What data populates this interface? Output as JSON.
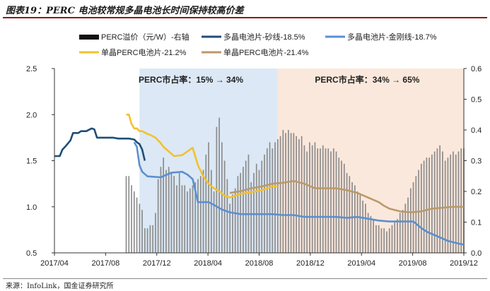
{
  "title": "图表19：PERC 电池较常规多晶电池长时间保持较高价差",
  "source": "来源：InfoLink，国金证券研究所",
  "chart_data": {
    "type": "line",
    "x_ticks": [
      "2017/04",
      "2017/08",
      "2017/12",
      "2018/04",
      "2018/08",
      "2018/12",
      "2019/04",
      "2019/08",
      "2019/12"
    ],
    "x_range": [
      "2017/04",
      "2019/12"
    ],
    "y_left": {
      "range": [
        0.5,
        2.5
      ],
      "ticks": [
        "0.5",
        "1.0",
        "1.5",
        "2.0",
        "2.5"
      ]
    },
    "y_right": {
      "range": [
        0.0,
        0.6
      ],
      "ticks": [
        "0.0",
        "0.1",
        "0.2",
        "0.3",
        "0.4",
        "0.5",
        "0.6"
      ]
    },
    "legend": [
      {
        "name": "PERC溢价（元/W）-右轴",
        "color": "#111111",
        "kind": "bar"
      },
      {
        "name": "多晶电池片-砂线-18.5%",
        "color": "#1f4e79",
        "kind": "line"
      },
      {
        "name": "多晶电池片-金刚线-18.7%",
        "color": "#5b8fd0",
        "kind": "line"
      },
      {
        "name": "单晶PERC电池片-21.2%",
        "color": "#f2c12e",
        "kind": "line"
      },
      {
        "name": "单晶PERC电池片-21.4%",
        "color": "#b99a6a",
        "kind": "line"
      }
    ],
    "annotations": [
      {
        "text": "PERC市占率：15% → 34%",
        "range": [
          "2017/12",
          "2018/12"
        ],
        "color": "#dce8f5"
      },
      {
        "text": "PERC市占率：34% → 65%",
        "range": [
          "2018/12",
          "2019/12"
        ],
        "color": "#fbe8dc"
      }
    ],
    "series": [
      {
        "name": "多晶电池片-砂线-18.5%",
        "axis": "left",
        "color": "#1f4e79",
        "points": [
          [
            0,
            1.55
          ],
          [
            2,
            1.55
          ],
          [
            3,
            1.62
          ],
          [
            4,
            1.65
          ],
          [
            6,
            1.72
          ],
          [
            7,
            1.8
          ],
          [
            9,
            1.8
          ],
          [
            10,
            1.82
          ],
          [
            12,
            1.82
          ],
          [
            14,
            1.85
          ],
          [
            15,
            1.84
          ],
          [
            16,
            1.75
          ],
          [
            20,
            1.75
          ],
          [
            22,
            1.75
          ],
          [
            24,
            1.74
          ],
          [
            28,
            1.74
          ],
          [
            30,
            1.73
          ],
          [
            31,
            1.7
          ],
          [
            32,
            1.68
          ],
          [
            33,
            1.62
          ],
          [
            34,
            1.5
          ]
        ]
      },
      {
        "name": "多晶电池片-金刚线-18.7%",
        "axis": "left",
        "color": "#5b8fd0",
        "points": [
          [
            30,
            1.7
          ],
          [
            31,
            1.65
          ],
          [
            32,
            1.45
          ],
          [
            33,
            1.38
          ],
          [
            35,
            1.33
          ],
          [
            40,
            1.32
          ],
          [
            44,
            1.37
          ],
          [
            48,
            1.38
          ],
          [
            50,
            1.35
          ],
          [
            52,
            1.3
          ],
          [
            54,
            1.05
          ],
          [
            56,
            1.05
          ],
          [
            58,
            1.05
          ],
          [
            60,
            1.02
          ],
          [
            63,
            0.97
          ],
          [
            66,
            0.94
          ],
          [
            70,
            0.92
          ],
          [
            74,
            0.92
          ],
          [
            78,
            0.92
          ],
          [
            82,
            0.92
          ],
          [
            86,
            0.91
          ],
          [
            90,
            0.91
          ],
          [
            94,
            0.89
          ],
          [
            98,
            0.89
          ],
          [
            102,
            0.89
          ],
          [
            106,
            0.89
          ],
          [
            110,
            0.88
          ],
          [
            114,
            0.89
          ],
          [
            118,
            0.87
          ],
          [
            122,
            0.85
          ],
          [
            126,
            0.84
          ],
          [
            128,
            0.84
          ],
          [
            130,
            0.84
          ],
          [
            133,
            0.84
          ],
          [
            135,
            0.84
          ],
          [
            138,
            0.77
          ],
          [
            140,
            0.73
          ],
          [
            144,
            0.68
          ],
          [
            148,
            0.63
          ],
          [
            152,
            0.6
          ],
          [
            154,
            0.59
          ]
        ]
      },
      {
        "name": "单晶PERC电池片-21.2%",
        "axis": "left",
        "color": "#f2c12e",
        "points": [
          [
            27,
            2.0
          ],
          [
            28,
            2.0
          ],
          [
            29,
            1.9
          ],
          [
            30,
            1.85
          ],
          [
            31,
            1.85
          ],
          [
            32,
            1.82
          ],
          [
            33,
            1.82
          ],
          [
            35,
            1.79
          ],
          [
            36,
            1.78
          ],
          [
            38,
            1.75
          ],
          [
            40,
            1.69
          ],
          [
            41,
            1.65
          ],
          [
            43,
            1.6
          ],
          [
            45,
            1.55
          ],
          [
            48,
            1.56
          ],
          [
            50,
            1.6
          ],
          [
            52,
            1.64
          ],
          [
            54,
            1.45
          ],
          [
            56,
            1.33
          ],
          [
            58,
            1.25
          ],
          [
            60,
            1.2
          ],
          [
            62,
            1.17
          ],
          [
            64,
            1.12
          ],
          [
            66,
            1.1
          ],
          [
            68,
            1.12
          ],
          [
            70,
            1.14
          ],
          [
            72,
            1.15
          ],
          [
            74,
            1.16
          ],
          [
            76,
            1.17
          ],
          [
            78,
            1.18
          ],
          [
            80,
            1.2
          ],
          [
            82,
            1.22
          ],
          [
            84,
            1.22
          ]
        ]
      },
      {
        "name": "单晶PERC电池片-21.4%",
        "axis": "left",
        "color": "#b99a6a",
        "points": [
          [
            66,
            1.15
          ],
          [
            70,
            1.17
          ],
          [
            74,
            1.2
          ],
          [
            78,
            1.22
          ],
          [
            82,
            1.25
          ],
          [
            86,
            1.26
          ],
          [
            90,
            1.28
          ],
          [
            94,
            1.25
          ],
          [
            98,
            1.2
          ],
          [
            102,
            1.2
          ],
          [
            106,
            1.2
          ],
          [
            110,
            1.18
          ],
          [
            114,
            1.15
          ],
          [
            118,
            1.1
          ],
          [
            122,
            1.05
          ],
          [
            124,
            1.01
          ],
          [
            126,
            0.98
          ],
          [
            130,
            0.95
          ],
          [
            134,
            0.94
          ],
          [
            138,
            0.95
          ],
          [
            142,
            0.98
          ],
          [
            146,
            0.99
          ],
          [
            150,
            1.0
          ],
          [
            154,
            1.0
          ]
        ]
      }
    ],
    "bars": {
      "name": "PERC溢价（元/W）-右轴",
      "axis": "right",
      "color": "#111111",
      "values": [
        [
          27,
          0.25
        ],
        [
          28,
          0.25
        ],
        [
          29,
          0.22
        ],
        [
          30,
          0.2
        ],
        [
          31,
          0.18
        ],
        [
          32,
          0.16
        ],
        [
          33,
          0.14
        ],
        [
          34,
          0.08
        ],
        [
          35,
          0.08
        ],
        [
          36,
          0.09
        ],
        [
          37,
          0.09
        ],
        [
          38,
          0.13
        ],
        [
          39,
          0.24
        ],
        [
          40,
          0.28
        ],
        [
          41,
          0.31
        ],
        [
          42,
          0.27
        ],
        [
          43,
          0.28
        ],
        [
          44,
          0.26
        ],
        [
          45,
          0.25
        ],
        [
          46,
          0.22
        ],
        [
          47,
          0.26
        ],
        [
          48,
          0.22
        ],
        [
          49,
          0.22
        ],
        [
          50,
          0.2
        ],
        [
          51,
          0.21
        ],
        [
          52,
          0.22
        ],
        [
          53,
          0.23
        ],
        [
          54,
          0.24
        ],
        [
          55,
          0.25
        ],
        [
          56,
          0.27
        ],
        [
          57,
          0.32
        ],
        [
          58,
          0.36
        ],
        [
          59,
          0.27
        ],
        [
          60,
          0.2
        ],
        [
          61,
          0.41
        ],
        [
          62,
          0.44
        ],
        [
          63,
          0.36
        ],
        [
          64,
          0.3
        ],
        [
          65,
          0.24
        ],
        [
          66,
          0.16
        ],
        [
          67,
          0.19
        ],
        [
          68,
          0.21
        ],
        [
          69,
          0.25
        ],
        [
          70,
          0.26
        ],
        [
          71,
          0.28
        ],
        [
          72,
          0.3
        ],
        [
          73,
          0.32
        ],
        [
          74,
          0.23
        ],
        [
          75,
          0.26
        ],
        [
          76,
          0.29
        ],
        [
          77,
          0.27
        ],
        [
          78,
          0.3
        ],
        [
          79,
          0.32
        ],
        [
          80,
          0.34
        ],
        [
          81,
          0.36
        ],
        [
          82,
          0.34
        ],
        [
          83,
          0.36
        ],
        [
          84,
          0.37
        ],
        [
          85,
          0.38
        ],
        [
          86,
          0.4
        ],
        [
          87,
          0.39
        ],
        [
          88,
          0.4
        ],
        [
          89,
          0.39
        ],
        [
          90,
          0.39
        ],
        [
          91,
          0.38
        ],
        [
          92,
          0.37
        ],
        [
          93,
          0.38
        ],
        [
          94,
          0.35
        ],
        [
          95,
          0.33
        ],
        [
          96,
          0.36
        ],
        [
          97,
          0.35
        ],
        [
          98,
          0.36
        ],
        [
          99,
          0.34
        ],
        [
          100,
          0.34
        ],
        [
          101,
          0.35
        ],
        [
          102,
          0.34
        ],
        [
          103,
          0.34
        ],
        [
          104,
          0.33
        ],
        [
          105,
          0.34
        ],
        [
          106,
          0.33
        ],
        [
          107,
          0.31
        ],
        [
          108,
          0.3
        ],
        [
          109,
          0.29
        ],
        [
          110,
          0.26
        ],
        [
          111,
          0.25
        ],
        [
          112,
          0.23
        ],
        [
          113,
          0.22
        ],
        [
          114,
          0.2
        ],
        [
          115,
          0.19
        ],
        [
          116,
          0.17
        ],
        [
          117,
          0.16
        ],
        [
          118,
          0.13
        ],
        [
          119,
          0.12
        ],
        [
          120,
          0.11
        ],
        [
          121,
          0.09
        ],
        [
          122,
          0.09
        ],
        [
          123,
          0.08
        ],
        [
          124,
          0.08
        ],
        [
          125,
          0.07
        ],
        [
          126,
          0.08
        ],
        [
          127,
          0.09
        ],
        [
          128,
          0.1
        ],
        [
          129,
          0.11
        ],
        [
          130,
          0.13
        ],
        [
          131,
          0.14
        ],
        [
          132,
          0.16
        ],
        [
          133,
          0.18
        ],
        [
          134,
          0.21
        ],
        [
          135,
          0.23
        ],
        [
          136,
          0.25
        ],
        [
          137,
          0.27
        ],
        [
          138,
          0.29
        ],
        [
          139,
          0.3
        ],
        [
          140,
          0.31
        ],
        [
          141,
          0.31
        ],
        [
          142,
          0.32
        ],
        [
          143,
          0.33
        ],
        [
          144,
          0.34
        ],
        [
          145,
          0.35
        ],
        [
          146,
          0.33
        ],
        [
          147,
          0.3
        ],
        [
          148,
          0.31
        ],
        [
          149,
          0.32
        ],
        [
          150,
          0.33
        ],
        [
          151,
          0.32
        ],
        [
          152,
          0.33
        ],
        [
          153,
          0.34
        ],
        [
          154,
          0.34
        ]
      ]
    }
  }
}
